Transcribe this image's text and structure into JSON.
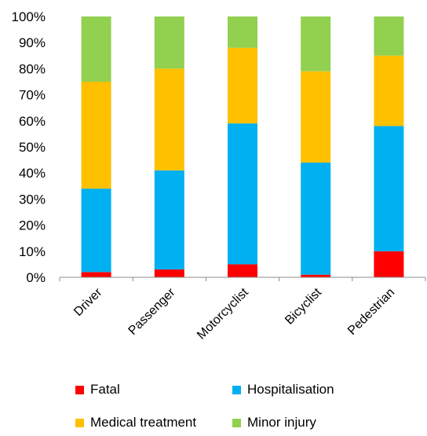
{
  "chart_data": {
    "type": "bar",
    "stacked": true,
    "percent": true,
    "categories": [
      "Driver",
      "Passenger",
      "Motorcyclist",
      "Bicyclist",
      "Pedestrian"
    ],
    "series": [
      {
        "name": "Fatal",
        "color": "#ff0000",
        "values": [
          2,
          3,
          5,
          1,
          10
        ]
      },
      {
        "name": "Hospitalisation",
        "color": "#00b0f0",
        "values": [
          32,
          38,
          54,
          43,
          48
        ]
      },
      {
        "name": "Medical treatment",
        "color": "#ffc000",
        "values": [
          41,
          39,
          29,
          35,
          27
        ]
      },
      {
        "name": "Minor injury",
        "color": "#92d050",
        "values": [
          25,
          20,
          12,
          21,
          15
        ]
      }
    ],
    "ylim": [
      0,
      100
    ],
    "yticks": [
      "0%",
      "10%",
      "20%",
      "30%",
      "40%",
      "50%",
      "60%",
      "70%",
      "80%",
      "90%",
      "100%"
    ],
    "grid": false,
    "legend_position": "bottom",
    "title": "",
    "xlabel": "",
    "ylabel": ""
  }
}
